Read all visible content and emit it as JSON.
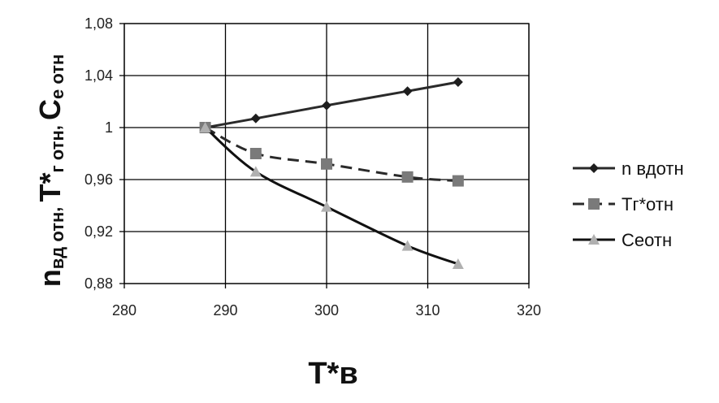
{
  "chart_data": {
    "type": "line",
    "xlabel": "T*в",
    "ylabel": {
      "part1_main": "n",
      "part1_sub": "вд отн",
      "sep1": ", ",
      "part2_main": "T*",
      "part2_sub": "г отн",
      "sep2": ", ",
      "part3_main": "C",
      "part3_sub": "е отн"
    },
    "xlim": [
      280,
      320
    ],
    "ylim": [
      0.88,
      1.08
    ],
    "x_ticks": [
      280,
      290,
      300,
      310,
      320
    ],
    "x_tick_labels": [
      "280",
      "290",
      "300",
      "310",
      "320"
    ],
    "y_ticks": [
      0.88,
      0.92,
      0.96,
      1.0,
      1.04,
      1.08
    ],
    "y_tick_labels": [
      "0,88",
      "0,92",
      "0,96",
      "1",
      "1,04",
      "1,08"
    ],
    "grid": "horizontal and vertical",
    "legend_position": "right",
    "series": [
      {
        "name": "n вдотн",
        "marker": "diamond",
        "line_style": "solid",
        "line_color": "#2a2a2a",
        "marker_color": "#1e1e1e",
        "x": [
          288,
          293,
          300,
          308,
          313
        ],
        "values": [
          1.0,
          1.007,
          1.017,
          1.028,
          1.035
        ]
      },
      {
        "name": "Тг*отн",
        "marker": "square",
        "line_style": "dashed",
        "line_color": "#2a2a2a",
        "marker_color": "#7a7a7a",
        "x": [
          288,
          293,
          300,
          308,
          313
        ],
        "values": [
          1.0,
          0.98,
          0.972,
          0.962,
          0.959
        ]
      },
      {
        "name": "Сеотн",
        "marker": "triangle",
        "line_style": "solid",
        "line_color": "#111111",
        "marker_color": "#b0b0b0",
        "x": [
          288,
          293,
          300,
          308,
          313
        ],
        "values": [
          1.0,
          0.966,
          0.939,
          0.909,
          0.895
        ]
      }
    ]
  }
}
